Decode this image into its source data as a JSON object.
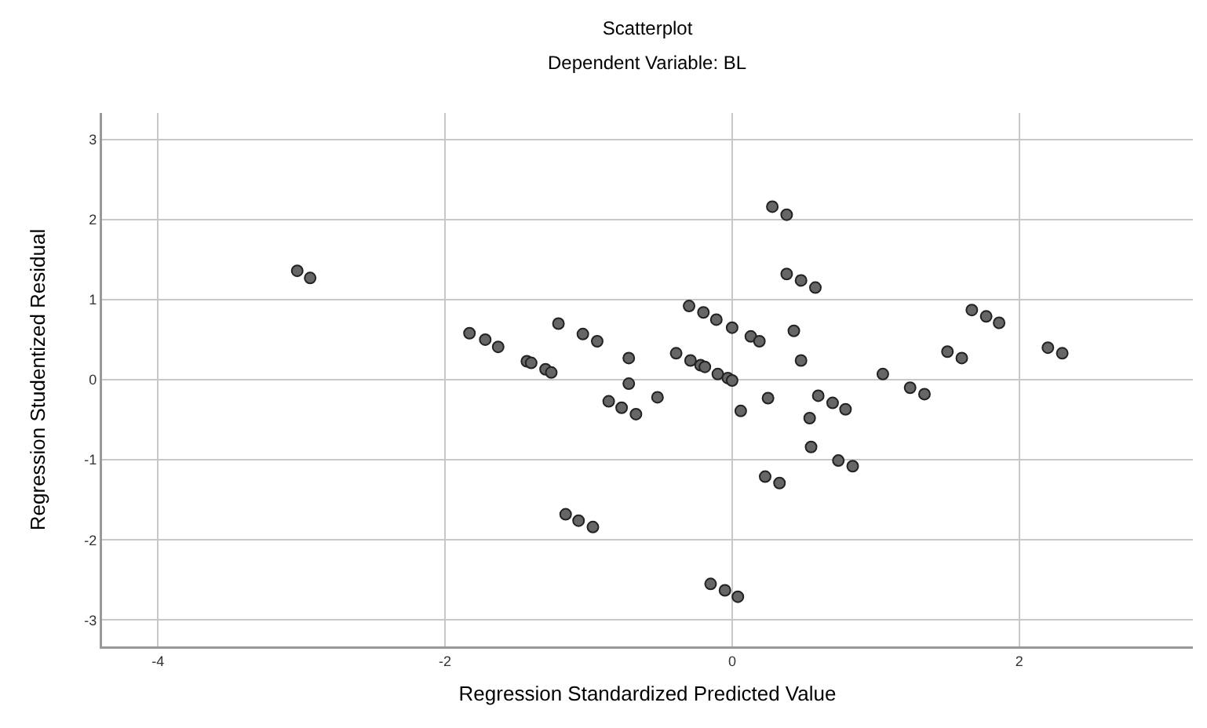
{
  "chart_data": {
    "type": "scatter",
    "title": "Scatterplot",
    "subtitle": "Dependent Variable: BL",
    "xlabel": "Regression Standardized Predicted Value",
    "ylabel": "Regression Studentized Residual",
    "x": [
      -3.03,
      -2.94,
      -1.83,
      -1.72,
      -1.63,
      -1.43,
      -1.4,
      -1.3,
      -1.26,
      -1.21,
      -1.04,
      -0.94,
      -1.16,
      -1.07,
      -0.97,
      -0.86,
      -0.77,
      -0.72,
      -0.72,
      -0.67,
      -0.52,
      -0.39,
      -0.3,
      -0.2,
      -0.11,
      0.0,
      -0.29,
      -0.22,
      -0.19,
      -0.1,
      -0.03,
      0.0,
      0.06,
      0.13,
      0.19,
      0.28,
      0.38,
      0.38,
      0.48,
      0.58,
      0.43,
      0.48,
      0.25,
      0.6,
      0.7,
      0.79,
      0.54,
      0.55,
      0.74,
      0.84,
      0.23,
      0.33,
      -0.15,
      -0.05,
      0.04,
      1.05,
      1.24,
      1.34,
      1.5,
      1.6,
      1.67,
      1.77,
      1.86,
      2.2,
      2.3
    ],
    "values": [
      1.36,
      1.27,
      0.58,
      0.5,
      0.41,
      0.23,
      0.21,
      0.13,
      0.09,
      0.7,
      0.57,
      0.48,
      -1.68,
      -1.76,
      -1.84,
      -0.27,
      -0.35,
      0.27,
      -0.05,
      -0.43,
      -0.22,
      0.33,
      0.92,
      0.84,
      0.75,
      0.65,
      0.24,
      0.18,
      0.16,
      0.07,
      0.02,
      -0.01,
      -0.39,
      0.54,
      0.48,
      2.16,
      2.06,
      1.32,
      1.24,
      1.15,
      0.61,
      0.24,
      -0.23,
      -0.2,
      -0.29,
      -0.37,
      -0.48,
      -0.84,
      -1.01,
      -1.08,
      -1.21,
      -1.29,
      -2.55,
      -2.63,
      -2.71,
      0.07,
      -0.1,
      -0.18,
      0.35,
      0.27,
      0.87,
      0.79,
      0.71,
      0.4,
      0.33
    ],
    "color": "#666666",
    "marker": "circle",
    "xlim": [
      -4.39,
      3.21
    ],
    "xticks": [
      -4,
      -2,
      0,
      2
    ],
    "ylim": [
      -3.33,
      3.33
    ],
    "yticks": [
      -3,
      -2,
      -1,
      0,
      1,
      2,
      3
    ],
    "grid": true
  }
}
